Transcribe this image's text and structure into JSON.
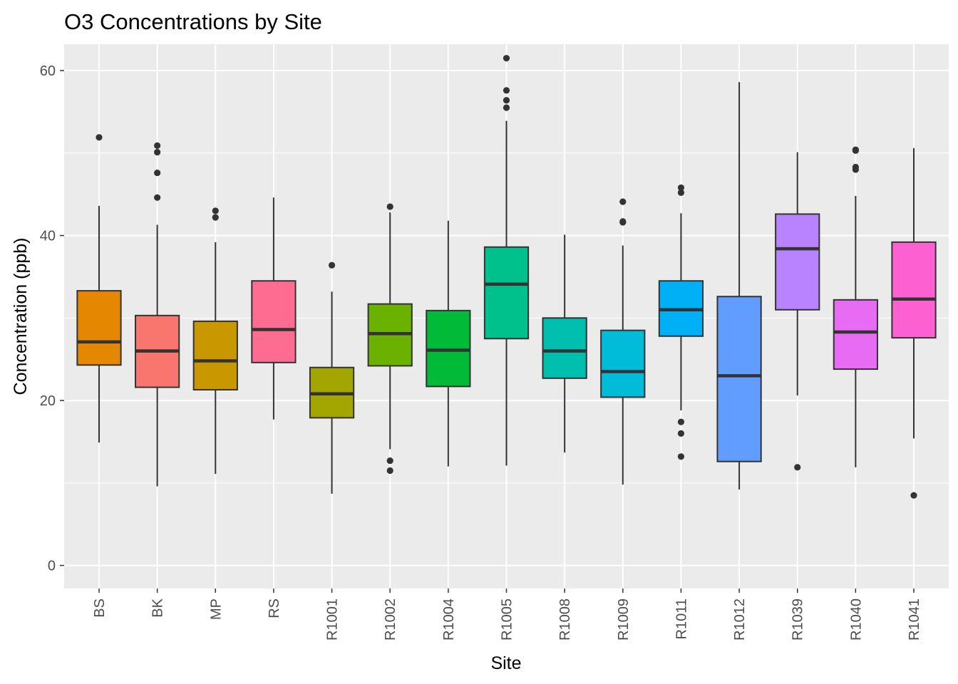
{
  "chart_data": {
    "type": "boxplot",
    "title": "O3 Concentrations by Site",
    "xlabel": "Site",
    "ylabel": "Concentration (ppb)",
    "ylim": [
      -2.8,
      63.2
    ],
    "yticks": [
      0,
      20,
      40,
      60
    ],
    "grid": true,
    "legend": "none",
    "categories": [
      "BS",
      "BK",
      "MP",
      "RS",
      "R1001",
      "R1002",
      "R1004",
      "R1005",
      "R1008",
      "R1009",
      "R1011",
      "R1012",
      "R1039",
      "R1040",
      "R1041"
    ],
    "boxes": [
      {
        "site": "BS",
        "color": "#E58700",
        "lower_whisker": 14.9,
        "q1": 24.3,
        "median": 27.1,
        "q3": 33.3,
        "upper_whisker": 43.6,
        "outliers": [
          51.9
        ]
      },
      {
        "site": "BK",
        "color": "#F8766D",
        "lower_whisker": 9.6,
        "q1": 21.6,
        "median": 26.0,
        "q3": 30.3,
        "upper_whisker": 41.3,
        "outliers": [
          44.6,
          47.6,
          50.1,
          50.9
        ]
      },
      {
        "site": "MP",
        "color": "#C99800",
        "lower_whisker": 11.1,
        "q1": 21.3,
        "median": 24.8,
        "q3": 29.6,
        "upper_whisker": 39.2,
        "outliers": [
          42.2,
          43.0
        ]
      },
      {
        "site": "RS",
        "color": "#FF6C91",
        "lower_whisker": 17.7,
        "q1": 24.6,
        "median": 28.6,
        "q3": 34.5,
        "upper_whisker": 44.6,
        "outliers": []
      },
      {
        "site": "R1001",
        "color": "#A3A500",
        "lower_whisker": 8.7,
        "q1": 17.9,
        "median": 20.8,
        "q3": 24.0,
        "upper_whisker": 33.2,
        "outliers": [
          36.4
        ]
      },
      {
        "site": "R1002",
        "color": "#6BB100",
        "lower_whisker": 14.1,
        "q1": 24.2,
        "median": 28.1,
        "q3": 31.7,
        "upper_whisker": 42.8,
        "outliers": [
          11.5,
          12.7,
          43.5
        ]
      },
      {
        "site": "R1004",
        "color": "#00BA38",
        "lower_whisker": 12.0,
        "q1": 21.7,
        "median": 26.1,
        "q3": 30.9,
        "upper_whisker": 41.8,
        "outliers": []
      },
      {
        "site": "R1005",
        "color": "#00C08B",
        "lower_whisker": 12.1,
        "q1": 27.5,
        "median": 34.1,
        "q3": 38.6,
        "upper_whisker": 53.9,
        "outliers": [
          55.5,
          56.4,
          57.6,
          61.5
        ]
      },
      {
        "site": "R1008",
        "color": "#00BFAF",
        "lower_whisker": 13.7,
        "q1": 22.7,
        "median": 26.0,
        "q3": 30.0,
        "upper_whisker": 40.1,
        "outliers": []
      },
      {
        "site": "R1009",
        "color": "#00BCD8",
        "lower_whisker": 9.8,
        "q1": 20.4,
        "median": 23.5,
        "q3": 28.5,
        "upper_whisker": 38.8,
        "outliers": [
          41.6,
          41.7,
          44.1
        ]
      },
      {
        "site": "R1011",
        "color": "#00B0F6",
        "lower_whisker": 18.8,
        "q1": 27.8,
        "median": 31.0,
        "q3": 34.5,
        "upper_whisker": 42.7,
        "outliers": [
          13.2,
          16.0,
          17.4,
          45.2,
          45.8
        ]
      },
      {
        "site": "R1012",
        "color": "#619CFF",
        "lower_whisker": 9.2,
        "q1": 12.6,
        "median": 23.0,
        "q3": 32.6,
        "upper_whisker": 58.6,
        "outliers": []
      },
      {
        "site": "R1039",
        "color": "#B983FF",
        "lower_whisker": 20.6,
        "q1": 31.0,
        "median": 38.4,
        "q3": 42.6,
        "upper_whisker": 50.1,
        "outliers": [
          11.9
        ]
      },
      {
        "site": "R1040",
        "color": "#E76BF3",
        "lower_whisker": 11.9,
        "q1": 23.8,
        "median": 28.3,
        "q3": 32.2,
        "upper_whisker": 44.8,
        "outliers": [
          48.0,
          48.3,
          50.3,
          50.4
        ]
      },
      {
        "site": "R1041",
        "color": "#FD61D1",
        "lower_whisker": 15.4,
        "q1": 27.6,
        "median": 32.3,
        "q3": 39.2,
        "upper_whisker": 50.6,
        "outliers": [
          8.5
        ]
      }
    ]
  }
}
